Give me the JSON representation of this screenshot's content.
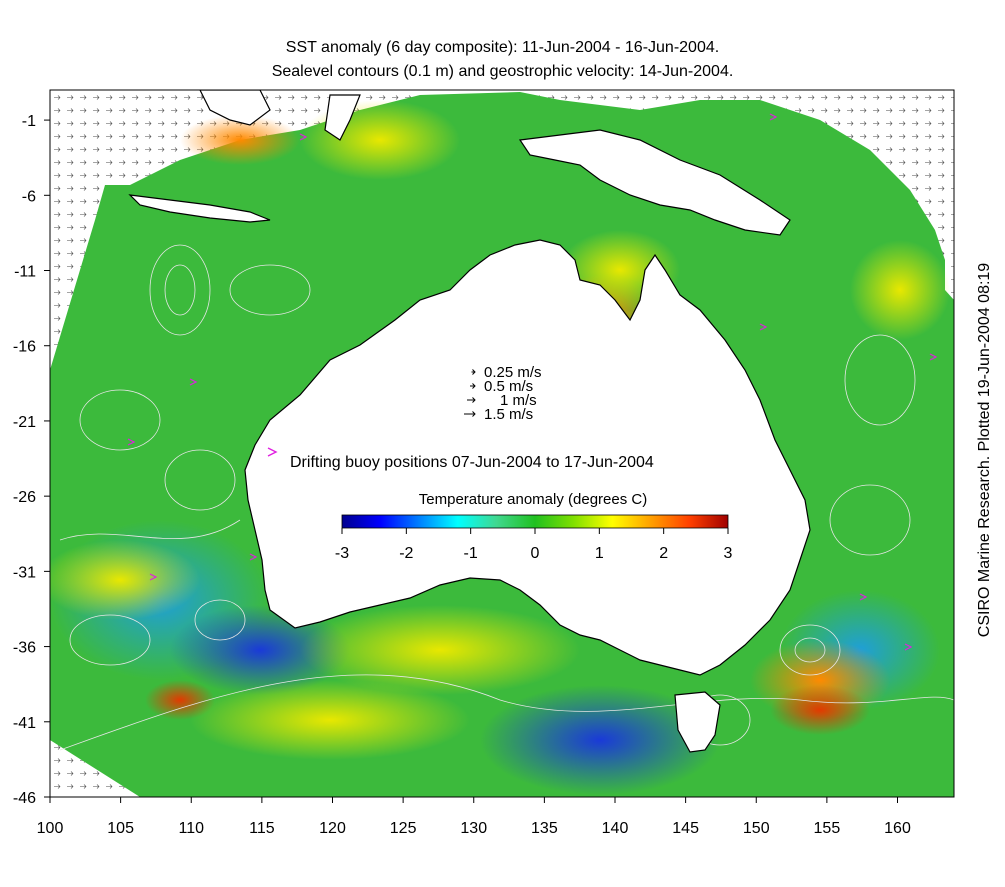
{
  "title": {
    "line1": "SST anomaly (6 day composite): 11-Jun-2004 - 16-Jun-2004.",
    "line2": "Sealevel contours (0.1 m) and geostrophic velocity: 14-Jun-2004."
  },
  "credit": "CSIRO Marine Research. Plotted 19-Jun-2004 08:19",
  "axes": {
    "x": {
      "range": [
        100,
        164
      ],
      "ticks": [
        100,
        105,
        110,
        115,
        120,
        125,
        130,
        135,
        140,
        145,
        150,
        155,
        160
      ]
    },
    "y": {
      "range": [
        -46,
        1
      ],
      "ticks": [
        -1,
        -6,
        -11,
        -16,
        -21,
        -26,
        -31,
        -36,
        -41,
        -46
      ]
    }
  },
  "velocity_legend": [
    {
      "label": "0.25 m/s",
      "magnitude": 0.25
    },
    {
      "label": "0.5 m/s",
      "magnitude": 0.5
    },
    {
      "label": "1 m/s",
      "magnitude": 1
    },
    {
      "label": "1.5 m/s",
      "magnitude": 1.5
    }
  ],
  "buoy_legend": {
    "label": "Drifting buoy positions 07-Jun-2004 to 17-Jun-2004",
    "color": "#e020e0"
  },
  "colorbar": {
    "title": "Temperature anomaly (degrees C)",
    "min": -3,
    "max": 3,
    "ticks": [
      -3,
      -2,
      -1,
      0,
      1,
      2,
      3
    ],
    "colors": [
      "#00008f",
      "#0000ff",
      "#0080ff",
      "#00ffff",
      "#40d890",
      "#20c020",
      "#80e000",
      "#ffff00",
      "#ffa000",
      "#ff4000",
      "#a00000"
    ]
  },
  "map_colors": {
    "ocean_base": "#3cba3c",
    "land": "#ffffff",
    "coast": "#000000",
    "contour": "#e6e6e6"
  }
}
